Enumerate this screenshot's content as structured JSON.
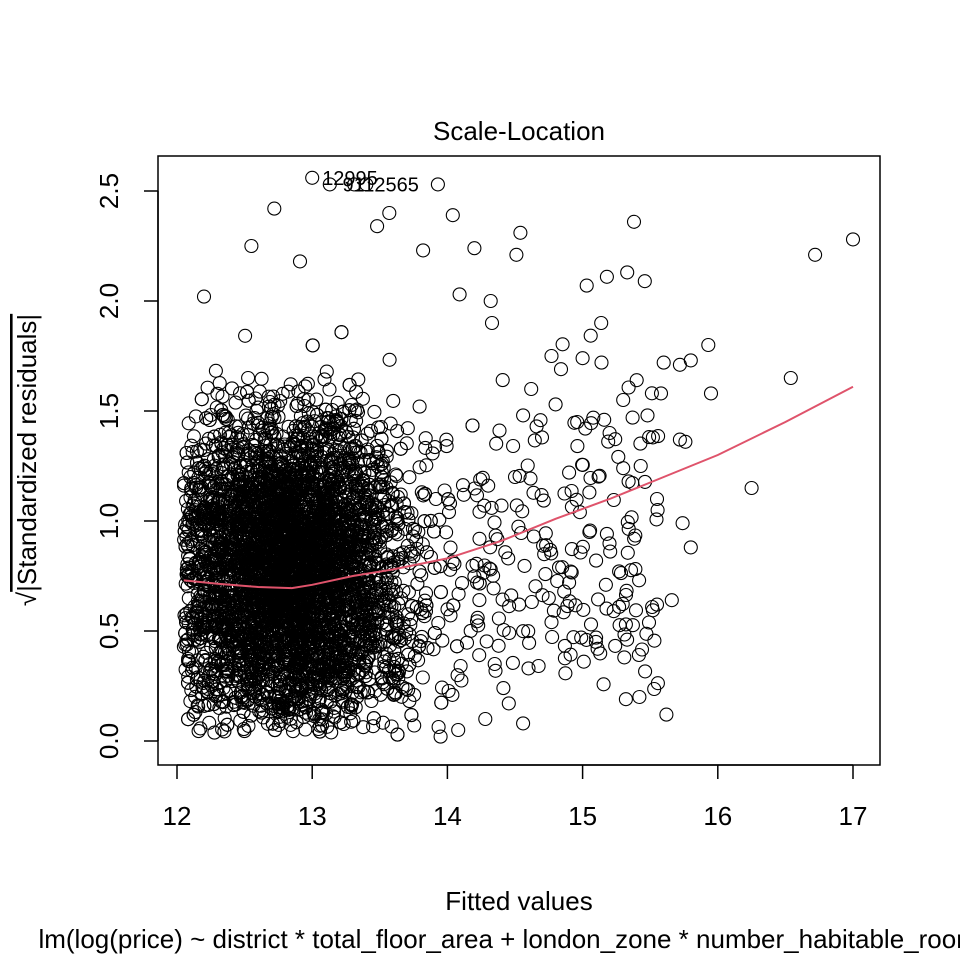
{
  "chart_data": {
    "type": "scatter",
    "title": "Scale-Location",
    "xlabel": "Fitted values",
    "ylabel_prefix": "√",
    "ylabel": "|Standardized residuals|",
    "subtitle": "lm(log(price) ~ district * total_floor_area + london_zone * number_habitable_rooms)",
    "xlim": [
      12.0,
      17.2
    ],
    "ylim": [
      -0.05,
      2.65
    ],
    "x_ticks": [
      "12",
      "13",
      "14",
      "15",
      "16",
      "17"
    ],
    "y_ticks": [
      "0.0",
      "0.5",
      "1.0",
      "1.5",
      "2.0",
      "2.5"
    ],
    "point_labels": [
      {
        "text": "12995",
        "x": 13.0,
        "y": 2.56
      },
      {
        "text": "9112565",
        "x": 13.15,
        "y": 2.53
      }
    ],
    "smooth_line": {
      "color": "#DF536B",
      "x": [
        12.05,
        12.3,
        12.6,
        12.85,
        13.0,
        13.3,
        13.6,
        14.0,
        14.4,
        14.8,
        15.2,
        15.6,
        16.0,
        16.5,
        17.0
      ],
      "y": [
        0.73,
        0.715,
        0.7,
        0.695,
        0.71,
        0.75,
        0.78,
        0.83,
        0.91,
        1.01,
        1.1,
        1.2,
        1.3,
        1.45,
        1.61
      ]
    },
    "points": {
      "x": [
        13.0,
        13.13,
        13.31,
        13.4,
        13.93,
        12.72,
        13.57,
        13.48,
        14.04,
        15.38,
        14.54,
        12.55,
        14.2,
        14.51,
        13.82,
        12.91,
        16.72,
        17.0,
        12.2,
        14.09,
        14.32,
        15.18,
        15.33,
        15.03,
        15.46,
        16.54,
        15.0,
        14.77,
        15.8,
        15.93,
        16.25,
        15.4,
        15.6,
        15.72,
        15.58,
        15.14,
        15.3,
        14.62,
        14.8,
        14.84,
        14.56,
        15.48,
        15.16,
        14.96,
        15.37,
        15.02,
        14.66,
        14.7,
        15.2,
        15.52,
        15.76,
        15.55,
        15.72,
        15.3,
        14.9,
        15.05,
        14.5,
        14.4,
        15.34,
        14.98,
        15.74,
        15.8,
        15.95,
        15.43,
        15.05,
        14.73,
        14.45,
        14.32,
        14.22,
        14.9,
        14.75,
        14.53,
        14.77,
        15.23,
        15.55,
        15.1,
        14.99,
        15.32,
        15.62,
        14.08,
        14.28,
        14.56,
        13.95,
        14.6,
        15.42,
        15.66,
        14.35,
        15.1
      ],
      "y": [
        2.56,
        2.53,
        2.53,
        2.53,
        2.53,
        2.42,
        2.4,
        2.34,
        2.39,
        2.36,
        2.31,
        2.25,
        2.24,
        2.21,
        2.23,
        2.18,
        2.21,
        2.28,
        2.02,
        2.03,
        2.0,
        2.11,
        2.13,
        2.07,
        2.09,
        1.65,
        1.74,
        1.75,
        1.73,
        1.8,
        1.15,
        1.64,
        1.72,
        1.71,
        1.58,
        1.72,
        1.55,
        1.6,
        1.53,
        1.69,
        1.48,
        1.48,
        1.46,
        1.45,
        1.47,
        1.42,
        1.43,
        1.38,
        1.4,
        1.38,
        1.36,
        1.1,
        1.37,
        1.24,
        1.22,
        1.13,
        1.2,
        1.07,
        1.18,
        1.04,
        0.99,
        0.88,
        1.58,
        1.25,
        0.95,
        0.89,
        0.83,
        0.78,
        0.72,
        0.72,
        0.65,
        0.62,
        0.54,
        0.59,
        0.62,
        0.47,
        0.47,
        0.19,
        0.12,
        0.05,
        0.1,
        0.08,
        0.02,
        0.33,
        0.2,
        0.64,
        0.35,
        0.82
      ]
    },
    "series_color": "#000000"
  }
}
